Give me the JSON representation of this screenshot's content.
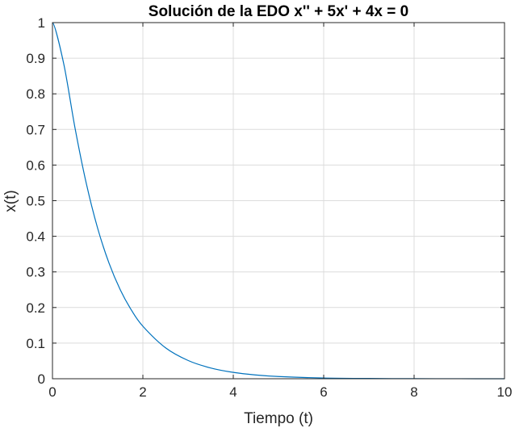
{
  "chart_data": {
    "type": "line",
    "title": "Solución de la EDO x'' + 5x' + 4x = 0",
    "xlabel": "Tiempo (t)",
    "ylabel": "x(t)",
    "xlim": [
      0,
      10
    ],
    "ylim": [
      0,
      1
    ],
    "xticks": [
      "0",
      "2",
      "4",
      "6",
      "8",
      "10"
    ],
    "yticks": [
      "0",
      "0.1",
      "0.2",
      "0.3",
      "0.4",
      "0.5",
      "0.6",
      "0.7",
      "0.8",
      "0.9",
      "1"
    ],
    "grid": true,
    "series_color": "#0072bd",
    "series": [
      {
        "x": [
          0,
          0.25,
          0.5,
          0.75,
          1,
          1.25,
          1.5,
          1.75,
          2,
          2.5,
          3,
          3.5,
          4,
          4.5,
          5,
          6,
          7,
          8,
          9,
          10
        ],
        "y": [
          1,
          0.8839,
          0.7033,
          0.5475,
          0.4223,
          0.3249,
          0.2497,
          0.1919,
          0.1474,
          0.087,
          0.0513,
          0.0302,
          0.0178,
          0.0105,
          0.0062,
          0.0021,
          0.0008,
          0.0003,
          0.0001,
          0.0
        ]
      }
    ]
  }
}
